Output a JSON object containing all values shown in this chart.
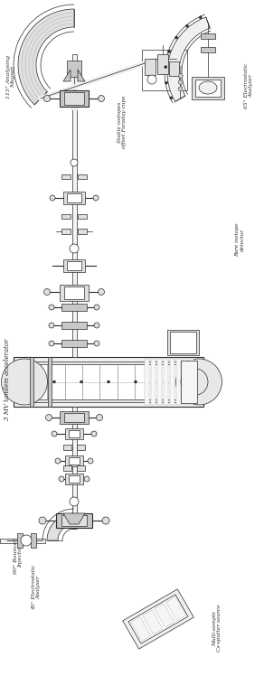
{
  "bg_color": "#ffffff",
  "lc": "#2a2a2a",
  "lc_thin": "#444444",
  "fc_light": "#f0f0f0",
  "fc_mid": "#e0e0e0",
  "fc_dark": "#c8c8c8",
  "fig_width": 2.92,
  "fig_height": 7.48,
  "labels": {
    "tandem": "3 MV tandem accelerator",
    "bouncer": "90° Bouncer\nInjector",
    "electrostatic45": "45° Electrostatic\nAnalyser",
    "multisample": "Multi-sample\nCs-sputter source",
    "magnet115": "115° Analysing\nMagnet",
    "faraday": "Stable isotopes\noffset Faraday cups",
    "electrostatic65": "65° Electrostatic\nAnalyser",
    "rare": "Rare isotope\ndetector"
  }
}
